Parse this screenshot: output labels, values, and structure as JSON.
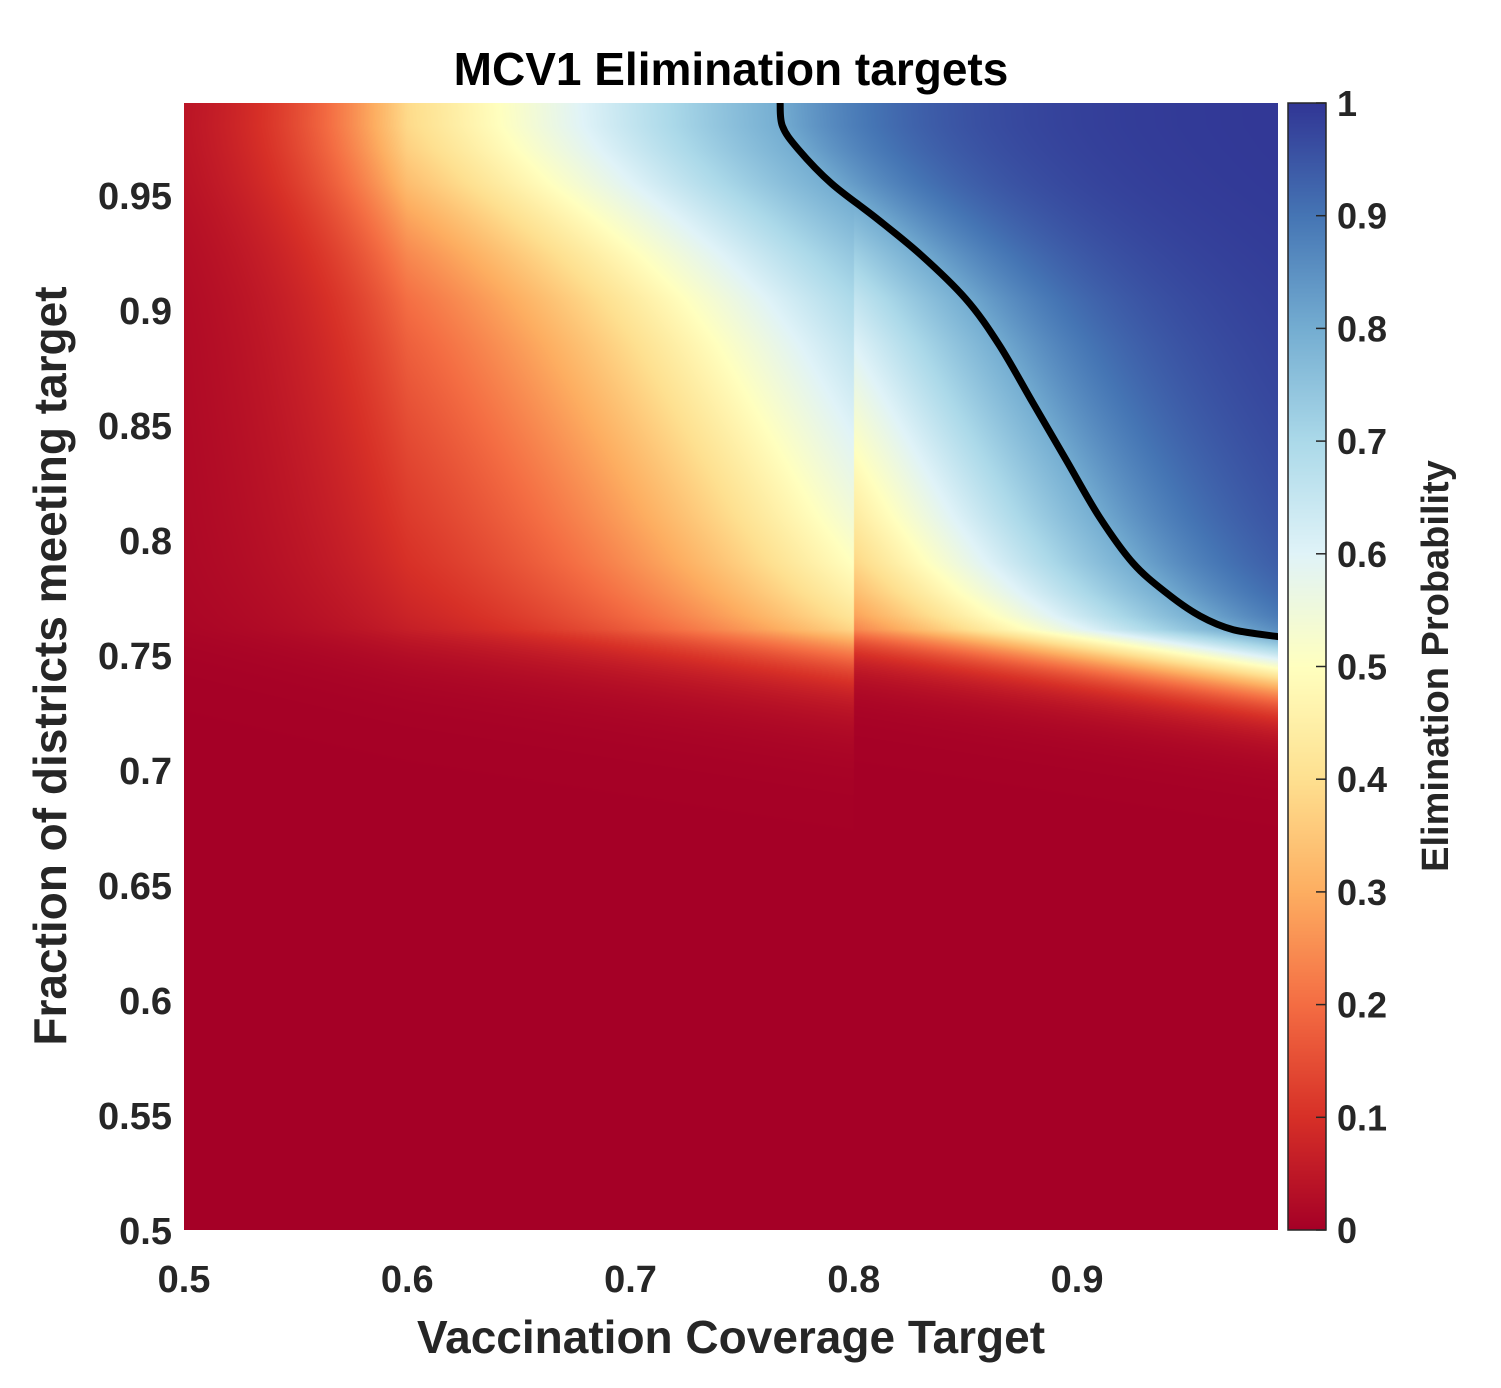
{
  "chart_data": {
    "type": "heatmap",
    "title": "MCV1 Elimination targets",
    "xlabel": "Vaccination Coverage Target",
    "ylabel": "Fraction of districts meeting target",
    "colorbar_label": "Elimination Probability",
    "xlim": [
      0.5,
      0.99
    ],
    "ylim": [
      0.5,
      0.99
    ],
    "clim": [
      0,
      1
    ],
    "x_ticks": [
      0.5,
      0.6,
      0.7,
      0.8,
      0.9
    ],
    "x_tick_labels": [
      "0.5",
      "0.6",
      "0.7",
      "0.8",
      "0.9"
    ],
    "y_ticks": [
      0.5,
      0.55,
      0.6,
      0.65,
      0.7,
      0.75,
      0.8,
      0.85,
      0.9,
      0.95
    ],
    "y_tick_labels": [
      "0.5",
      "0.55",
      "0.6",
      "0.65",
      "0.7",
      "0.75",
      "0.8",
      "0.85",
      "0.9",
      "0.95"
    ],
    "colorbar_ticks": [
      0,
      0.1,
      0.2,
      0.3,
      0.4,
      0.5,
      0.6,
      0.7,
      0.8,
      0.9,
      1
    ],
    "colorbar_tick_labels": [
      "0",
      "0.1",
      "0.2",
      "0.3",
      "0.4",
      "0.5",
      "0.6",
      "0.7",
      "0.8",
      "0.9",
      "1"
    ],
    "colormap": [
      "#a50026",
      "#d73027",
      "#f46d43",
      "#fdae61",
      "#fee090",
      "#ffffbf",
      "#e0f3f8",
      "#abd9e9",
      "#74add1",
      "#4575b4",
      "#313695"
    ],
    "contour_color": "#000000",
    "contour_line": [
      {
        "x": 0.767,
        "y": 0.99
      },
      {
        "x": 0.768,
        "y": 0.98
      },
      {
        "x": 0.775,
        "y": 0.97
      },
      {
        "x": 0.79,
        "y": 0.955
      },
      {
        "x": 0.81,
        "y": 0.94
      },
      {
        "x": 0.83,
        "y": 0.924
      },
      {
        "x": 0.85,
        "y": 0.905
      },
      {
        "x": 0.865,
        "y": 0.885
      },
      {
        "x": 0.88,
        "y": 0.86
      },
      {
        "x": 0.895,
        "y": 0.835
      },
      {
        "x": 0.91,
        "y": 0.81
      },
      {
        "x": 0.925,
        "y": 0.79
      },
      {
        "x": 0.94,
        "y": 0.777
      },
      {
        "x": 0.955,
        "y": 0.767
      },
      {
        "x": 0.97,
        "y": 0.761
      },
      {
        "x": 0.99,
        "y": 0.758
      }
    ],
    "grid": false
  }
}
